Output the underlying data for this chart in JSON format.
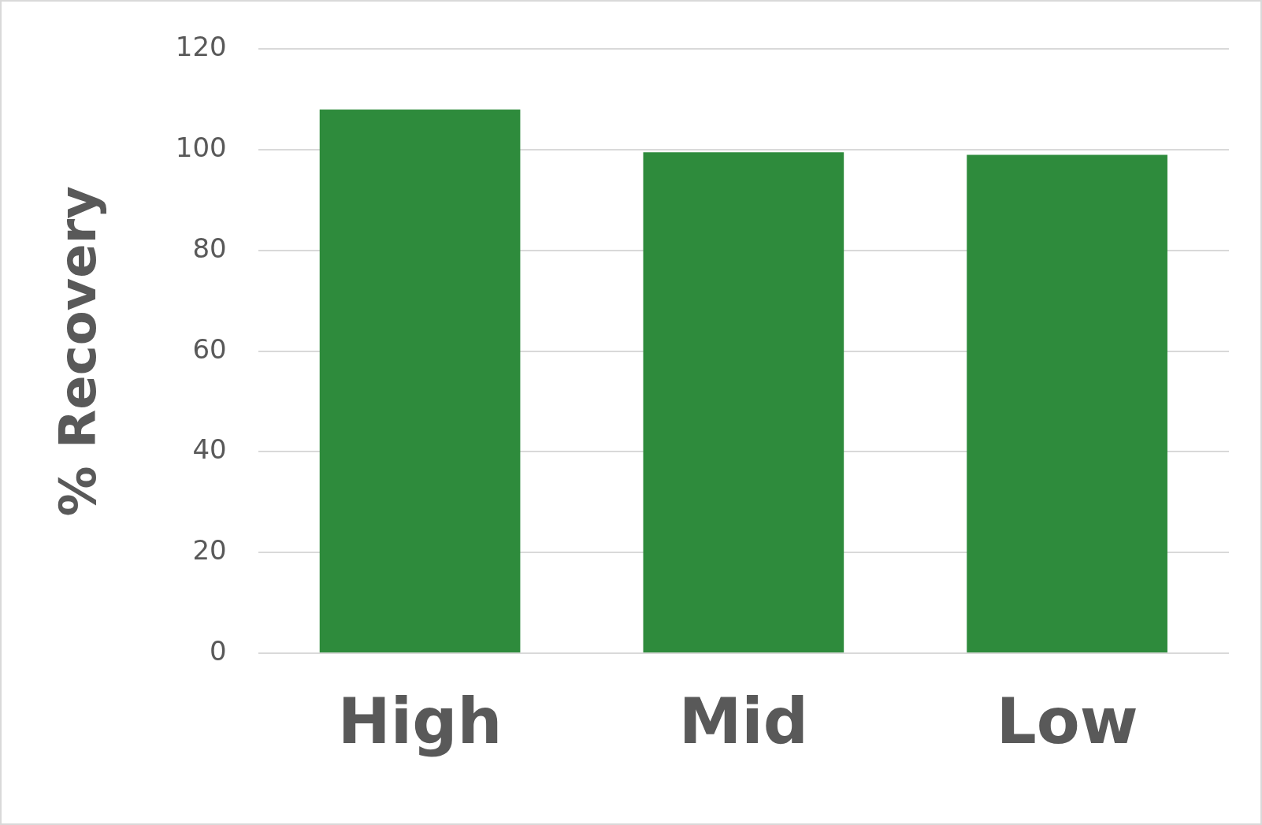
{
  "chart_data": {
    "type": "bar",
    "ylabel": "% Recovery",
    "categories": [
      "High",
      "Mid",
      "Low"
    ],
    "values": [
      108,
      99.5,
      99
    ],
    "color": "#2e8b3c",
    "ylim": [
      0,
      120
    ],
    "yticks": [
      0,
      20,
      40,
      60,
      80,
      100,
      120
    ],
    "grid": "y",
    "legend": false
  }
}
